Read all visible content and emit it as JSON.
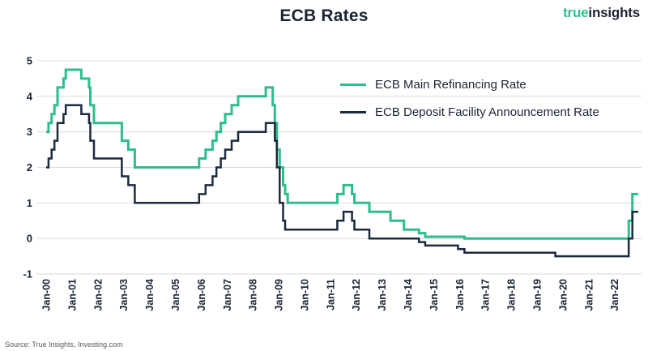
{
  "header": {
    "title": "ECB Rates",
    "logo": {
      "word1": "true",
      "word2": "insights"
    }
  },
  "footer": {
    "source": "Source: True Insights, Investing.com"
  },
  "colors": {
    "accent_green": "#2fbe8a",
    "dark_navy": "#1b2433",
    "grid": "#d9d9d9",
    "source_text": "#595959"
  },
  "chart_data": {
    "type": "line",
    "step": true,
    "title": "ECB Rates",
    "xlabel": "",
    "ylabel": "",
    "grid": "horizontal",
    "legend_position": "inside-top-right",
    "x_axis": {
      "range": [
        2000.0,
        2022.92
      ],
      "labels": [
        "Jan-00",
        "Jan-01",
        "Jan-02",
        "Jan-03",
        "Jan-04",
        "Jan-05",
        "Jan-06",
        "Jan-07",
        "Jan-08",
        "Jan-09",
        "Jan-10",
        "Jan-11",
        "Jan-12",
        "Jan-13",
        "Jan-14",
        "Jan-15",
        "Jan-16",
        "Jan-17",
        "Jan-18",
        "Jan-19",
        "Jan-20",
        "Jan-21",
        "Jan-22"
      ],
      "label_interval_years": 1,
      "label_rotation_deg": -90
    },
    "y_axis": {
      "range": [
        -1,
        5
      ],
      "ticks": [
        5,
        4,
        3,
        2,
        1,
        0,
        -1
      ]
    },
    "series": [
      {
        "id": "main-refinancing-rate",
        "name": "ECB Main Refinancing Rate",
        "color": "#2fbe8a",
        "width": 3,
        "points": [
          [
            2000.0,
            3.0
          ],
          [
            2000.09,
            3.25
          ],
          [
            2000.21,
            3.5
          ],
          [
            2000.32,
            3.75
          ],
          [
            2000.44,
            4.25
          ],
          [
            2000.67,
            4.5
          ],
          [
            2000.76,
            4.75
          ],
          [
            2001.36,
            4.5
          ],
          [
            2001.66,
            4.25
          ],
          [
            2001.71,
            3.75
          ],
          [
            2001.85,
            3.25
          ],
          [
            2002.93,
            2.75
          ],
          [
            2003.18,
            2.5
          ],
          [
            2003.43,
            2.0
          ],
          [
            2005.92,
            2.25
          ],
          [
            2006.17,
            2.5
          ],
          [
            2006.44,
            2.75
          ],
          [
            2006.59,
            3.0
          ],
          [
            2006.76,
            3.25
          ],
          [
            2006.93,
            3.5
          ],
          [
            2007.18,
            3.75
          ],
          [
            2007.43,
            4.0
          ],
          [
            2008.5,
            4.25
          ],
          [
            2008.77,
            3.75
          ],
          [
            2008.85,
            3.25
          ],
          [
            2008.93,
            2.5
          ],
          [
            2009.04,
            2.0
          ],
          [
            2009.17,
            1.5
          ],
          [
            2009.25,
            1.25
          ],
          [
            2009.35,
            1.0
          ],
          [
            2011.27,
            1.25
          ],
          [
            2011.51,
            1.5
          ],
          [
            2011.84,
            1.25
          ],
          [
            2011.93,
            1.0
          ],
          [
            2012.51,
            0.75
          ],
          [
            2013.33,
            0.5
          ],
          [
            2013.85,
            0.25
          ],
          [
            2014.43,
            0.15
          ],
          [
            2014.67,
            0.05
          ],
          [
            2016.19,
            0.0
          ],
          [
            2022.55,
            0.5
          ],
          [
            2022.69,
            1.25
          ]
        ]
      },
      {
        "id": "deposit-facility-rate",
        "name": "ECB Deposit Facility Announcement Rate",
        "color": "#1b2a3e",
        "width": 2.5,
        "points": [
          [
            2000.0,
            2.0
          ],
          [
            2000.09,
            2.25
          ],
          [
            2000.21,
            2.5
          ],
          [
            2000.32,
            2.75
          ],
          [
            2000.44,
            3.25
          ],
          [
            2000.67,
            3.5
          ],
          [
            2000.76,
            3.75
          ],
          [
            2001.36,
            3.5
          ],
          [
            2001.66,
            3.25
          ],
          [
            2001.71,
            2.75
          ],
          [
            2001.85,
            2.25
          ],
          [
            2002.93,
            1.75
          ],
          [
            2003.18,
            1.5
          ],
          [
            2003.43,
            1.0
          ],
          [
            2005.92,
            1.25
          ],
          [
            2006.17,
            1.5
          ],
          [
            2006.44,
            1.75
          ],
          [
            2006.59,
            2.0
          ],
          [
            2006.76,
            2.25
          ],
          [
            2006.93,
            2.5
          ],
          [
            2007.18,
            2.75
          ],
          [
            2007.43,
            3.0
          ],
          [
            2008.5,
            3.25
          ],
          [
            2008.85,
            2.75
          ],
          [
            2008.93,
            2.0
          ],
          [
            2009.04,
            1.0
          ],
          [
            2009.17,
            0.5
          ],
          [
            2009.25,
            0.25
          ],
          [
            2011.27,
            0.5
          ],
          [
            2011.51,
            0.75
          ],
          [
            2011.84,
            0.5
          ],
          [
            2011.93,
            0.25
          ],
          [
            2012.51,
            0.0
          ],
          [
            2014.43,
            -0.1
          ],
          [
            2014.67,
            -0.2
          ],
          [
            2015.94,
            -0.3
          ],
          [
            2016.19,
            -0.4
          ],
          [
            2019.71,
            -0.5
          ],
          [
            2022.55,
            0.0
          ],
          [
            2022.69,
            0.75
          ]
        ]
      }
    ]
  }
}
